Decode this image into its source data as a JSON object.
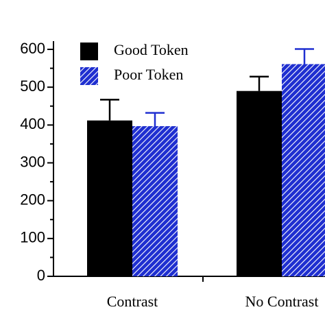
{
  "chart_data": {
    "type": "bar",
    "categories": [
      "Contrast",
      "No Contrast"
    ],
    "series": [
      {
        "name": "Good Token",
        "color": "#000000",
        "pattern": "solid",
        "values": [
          412,
          490
        ],
        "errors": [
          55,
          38
        ]
      },
      {
        "name": "Poor Token",
        "color": "#1f2fd0",
        "pattern": "hatch",
        "values": [
          397,
          561
        ],
        "errors": [
          35,
          40
        ]
      }
    ],
    "ylim": [
      0,
      600
    ],
    "yticks": [
      0,
      100,
      200,
      300,
      400,
      500,
      600
    ],
    "minor_yticks": [
      50,
      150,
      250,
      350,
      450,
      550
    ],
    "legend": "upper left"
  }
}
